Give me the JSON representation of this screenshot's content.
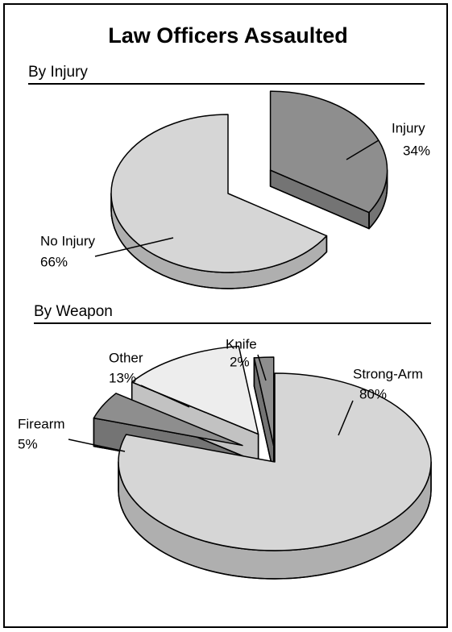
{
  "title": "Law Officers Assaulted",
  "chart_data": [
    {
      "type": "pie",
      "title": "By Injury",
      "categories": [
        "Injury",
        "No Injury"
      ],
      "values": [
        34,
        66
      ],
      "value_labels": [
        "34%",
        "66%"
      ],
      "colors": [
        "#8e8e8e",
        "#d6d6d6"
      ]
    },
    {
      "type": "pie",
      "title": "By Weapon",
      "categories": [
        "Strong-Arm",
        "Firearm",
        "Other",
        "Knife"
      ],
      "values": [
        80,
        5,
        13,
        2
      ],
      "value_labels": [
        "80%",
        "5%",
        "13%",
        "2%"
      ],
      "colors": [
        "#d6d6d6",
        "#8e8e8e",
        "#ededed",
        "#8e8e8e"
      ]
    }
  ]
}
